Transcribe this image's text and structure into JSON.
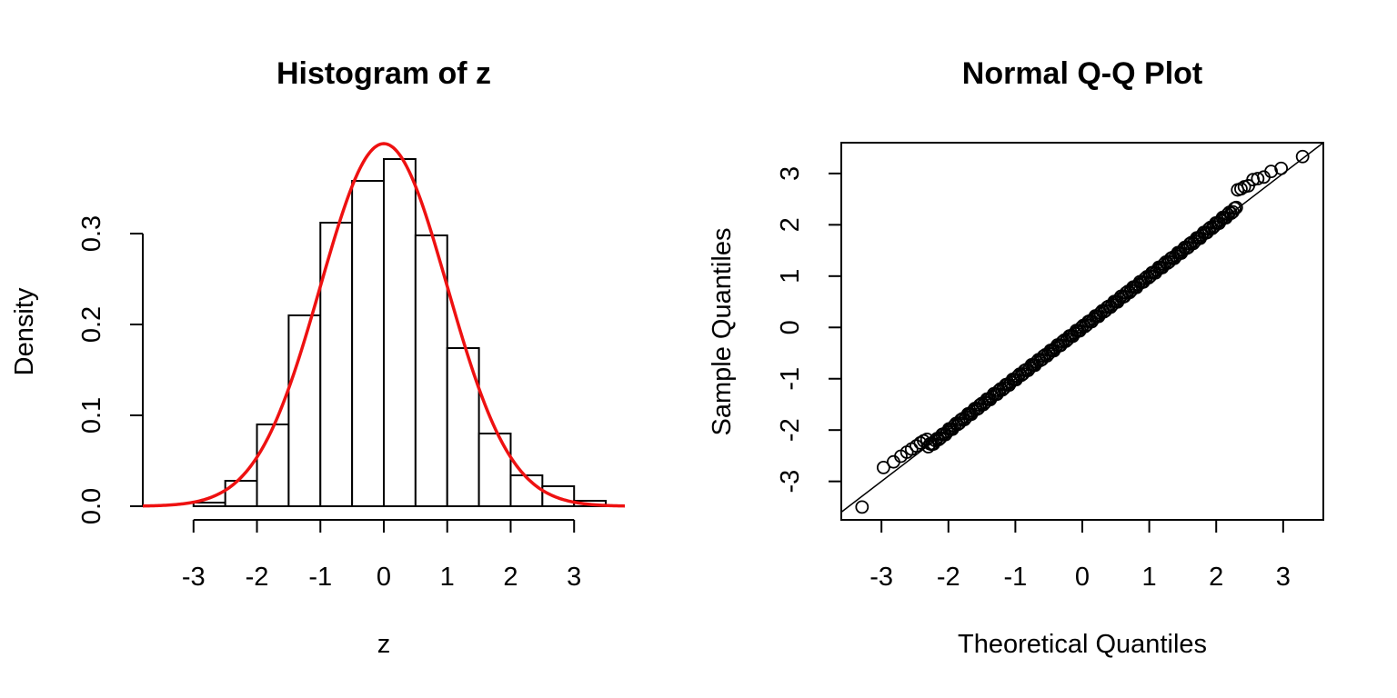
{
  "chart_data": [
    {
      "type": "bar",
      "title": "Histogram of z",
      "xlabel": "z",
      "ylabel": "Density",
      "xlim": [
        -3.8,
        3.8
      ],
      "ylim": [
        0,
        0.4
      ],
      "bins": [
        {
          "x0": -3.5,
          "x1": -3.0,
          "density": 0.0
        },
        {
          "x0": -3.0,
          "x1": -2.5,
          "density": 0.004
        },
        {
          "x0": -2.5,
          "x1": -2.0,
          "density": 0.028
        },
        {
          "x0": -2.0,
          "x1": -1.5,
          "density": 0.09
        },
        {
          "x0": -1.5,
          "x1": -1.0,
          "density": 0.21
        },
        {
          "x0": -1.0,
          "x1": -0.5,
          "density": 0.312
        },
        {
          "x0": -0.5,
          "x1": 0.0,
          "density": 0.358
        },
        {
          "x0": 0.0,
          "x1": 0.5,
          "density": 0.382
        },
        {
          "x0": 0.5,
          "x1": 1.0,
          "density": 0.298
        },
        {
          "x0": 1.0,
          "x1": 1.5,
          "density": 0.174
        },
        {
          "x0": 1.5,
          "x1": 2.0,
          "density": 0.08
        },
        {
          "x0": 2.0,
          "x1": 2.5,
          "density": 0.034
        },
        {
          "x0": 2.5,
          "x1": 3.0,
          "density": 0.022
        },
        {
          "x0": 3.0,
          "x1": 3.5,
          "density": 0.006
        }
      ],
      "xticks": [
        -3,
        -2,
        -1,
        0,
        1,
        2,
        3
      ],
      "yticks": [
        0.0,
        0.1,
        0.2,
        0.3
      ],
      "ytick_labels": [
        "0.0",
        "0.1",
        "0.2",
        "0.3"
      ],
      "curve": {
        "type": "normal density",
        "mean": 0,
        "sd": 1,
        "color": "#ee1111"
      }
    },
    {
      "type": "scatter",
      "title": "Normal Q-Q Plot",
      "xlabel": "Theoretical Quantiles",
      "ylabel": "Sample Quantiles",
      "xlim": [
        -3.6,
        3.6
      ],
      "ylim": [
        -3.75,
        3.6
      ],
      "xticks": [
        -3,
        -2,
        -1,
        0,
        1,
        2,
        3
      ],
      "yticks": [
        -3,
        -2,
        -1,
        0,
        1,
        2,
        3
      ],
      "outlier_points": [
        {
          "x": -3.29,
          "y": -3.5
        },
        {
          "x": -2.97,
          "y": -2.73
        },
        {
          "x": -2.82,
          "y": -2.62
        },
        {
          "x": -2.71,
          "y": -2.51
        },
        {
          "x": -2.62,
          "y": -2.43
        },
        {
          "x": -2.55,
          "y": -2.37
        },
        {
          "x": -2.48,
          "y": -2.31
        },
        {
          "x": -2.42,
          "y": -2.25
        },
        {
          "x": -2.37,
          "y": -2.21
        },
        {
          "x": -2.32,
          "y": -2.18
        },
        {
          "x": 3.29,
          "y": 3.33
        },
        {
          "x": 2.97,
          "y": 3.1
        },
        {
          "x": 2.82,
          "y": 3.04
        },
        {
          "x": 2.71,
          "y": 2.93
        },
        {
          "x": 2.62,
          "y": 2.9
        },
        {
          "x": 2.55,
          "y": 2.88
        },
        {
          "x": 2.48,
          "y": 2.76
        },
        {
          "x": 2.42,
          "y": 2.74
        },
        {
          "x": 2.37,
          "y": 2.7
        },
        {
          "x": 2.32,
          "y": 2.68
        }
      ],
      "bulk_range": [
        -2.3,
        2.3
      ],
      "reference_line": {
        "intercept": 0,
        "slope": 1
      }
    }
  ]
}
